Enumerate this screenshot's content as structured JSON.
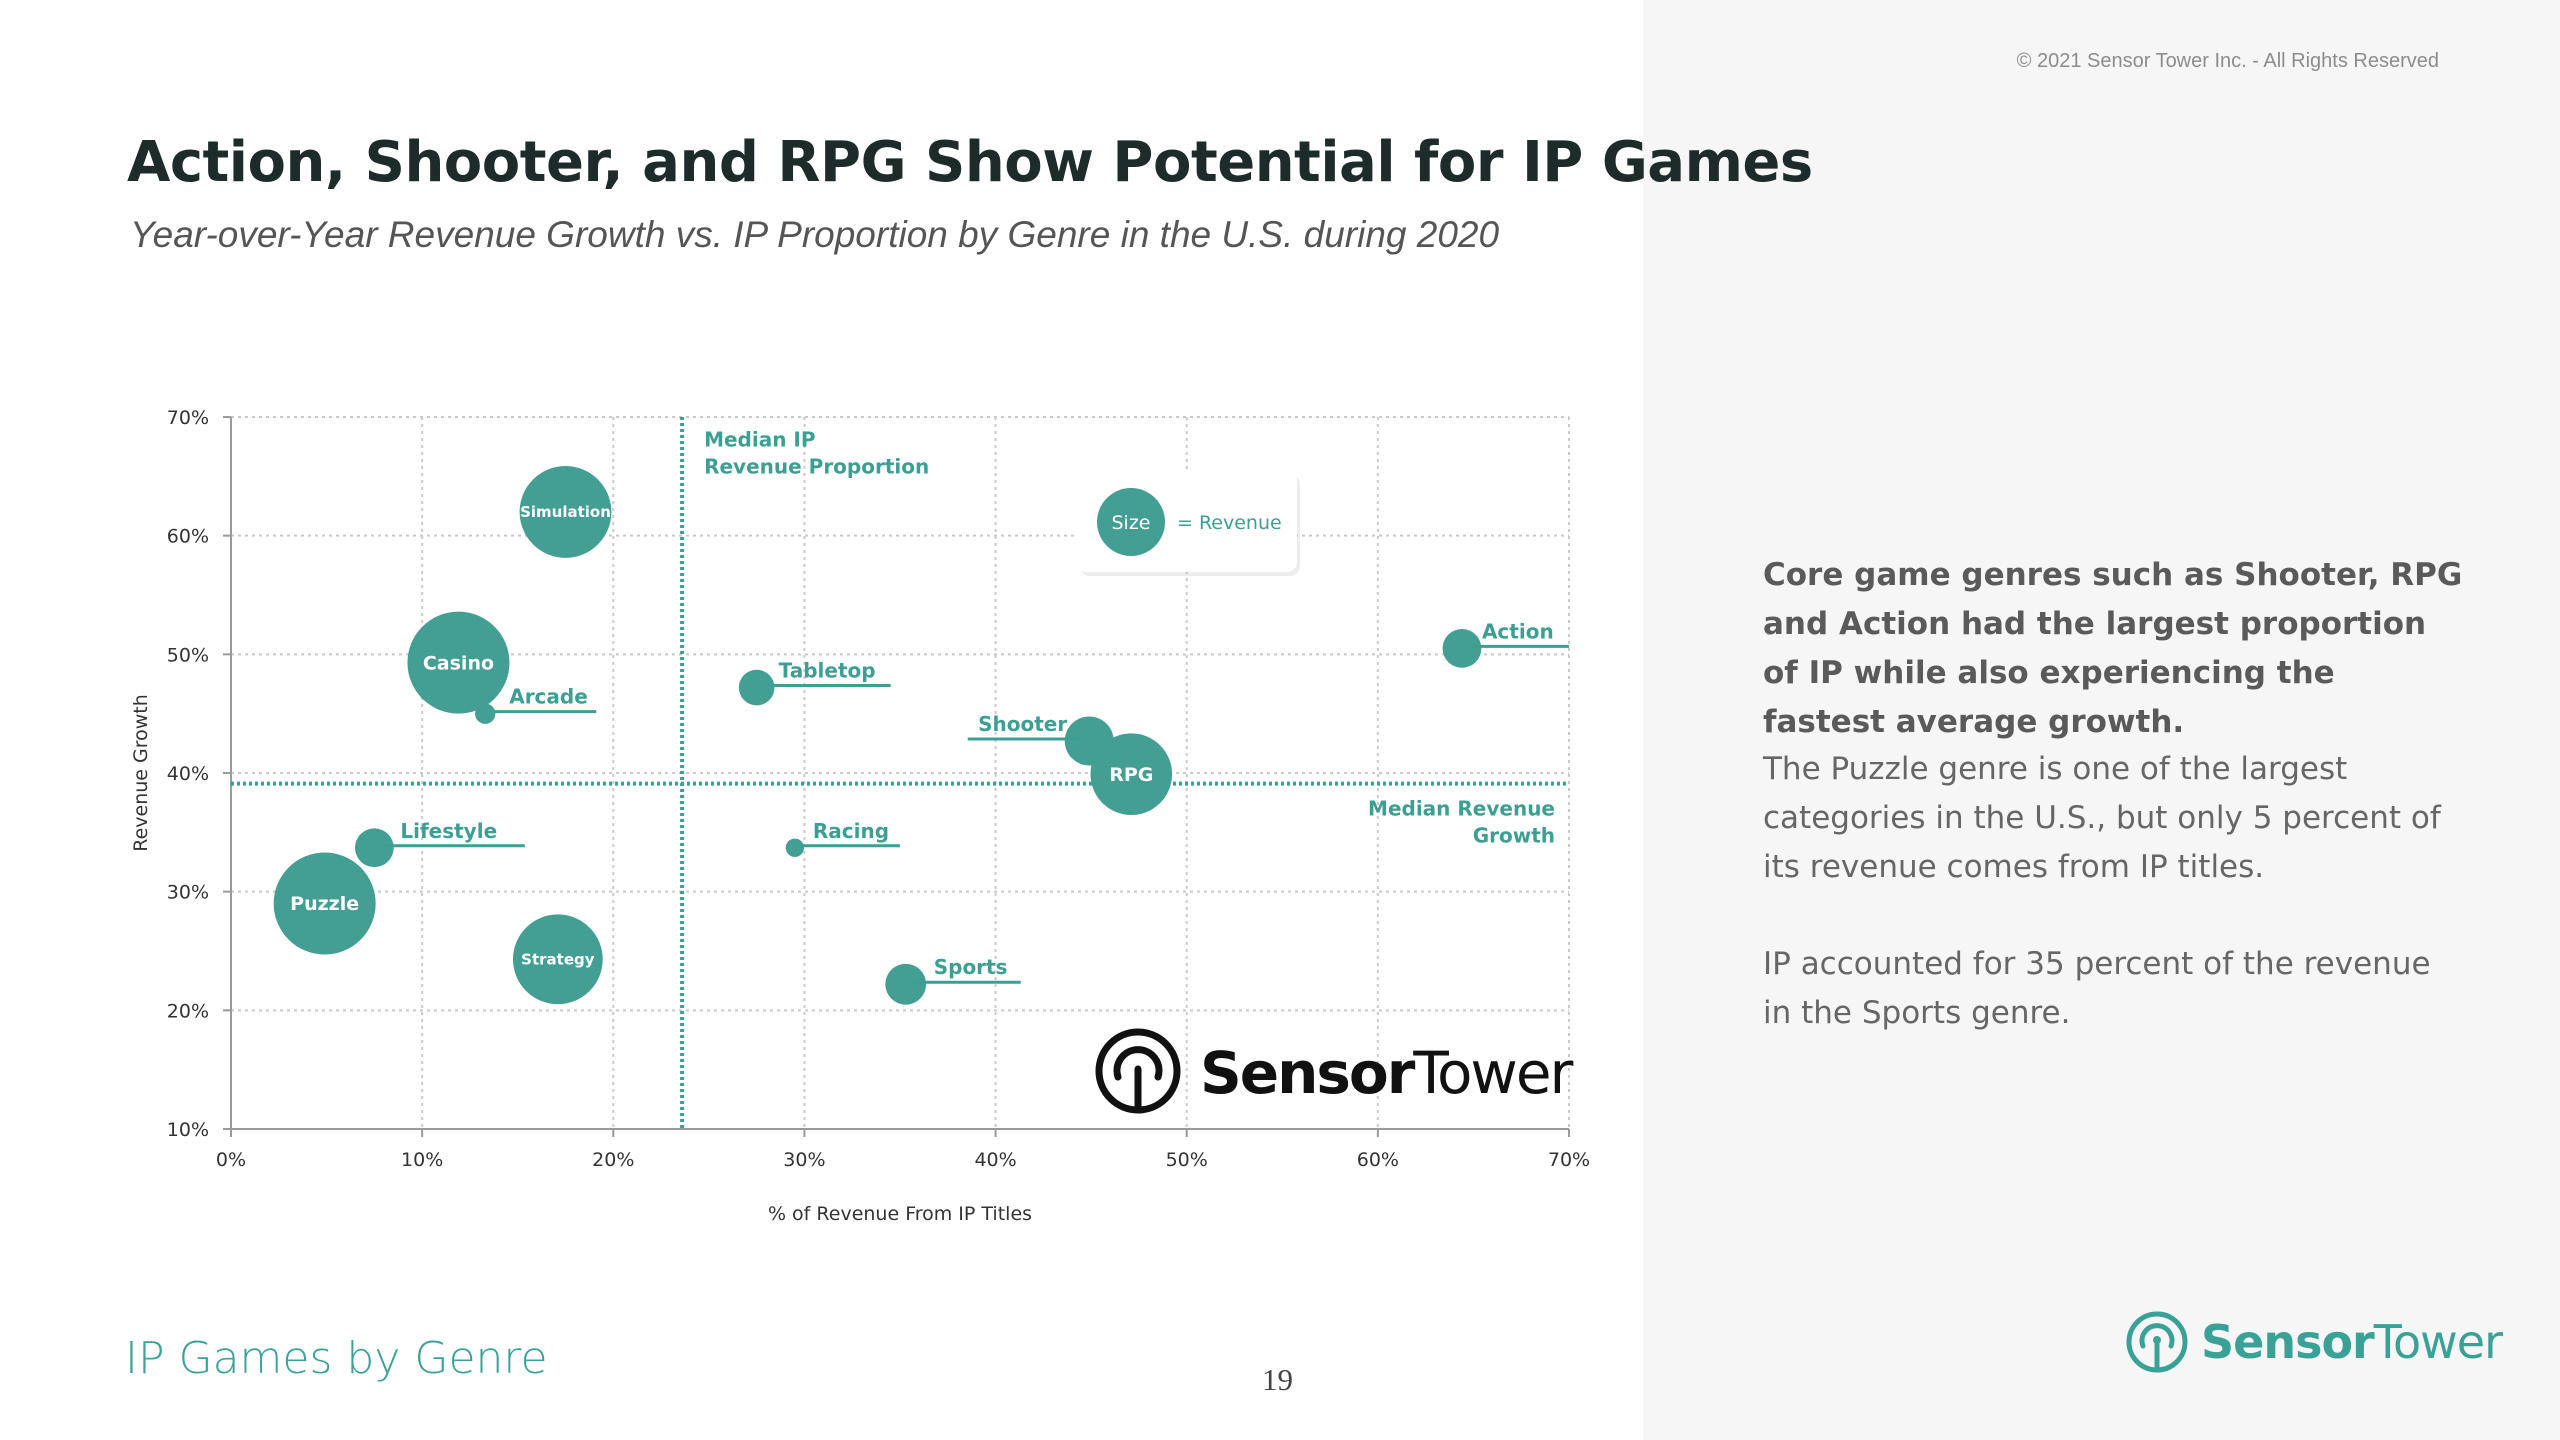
{
  "header": {
    "copyright": "© 2021 Sensor Tower Inc. - All Rights Reserved",
    "title": "Action, Shooter, and RPG Show Potential for IP Games",
    "subtitle": "Year-over-Year Revenue Growth vs. IP Proportion by Genre in the U.S. during 2020"
  },
  "callouts": {
    "highlight": "Core game genres such as Shooter, RPG and Action had the largest proportion of IP while also experiencing the fastest average growth.",
    "puzzle": "The Puzzle genre is one of the largest categories in the U.S., but only 5 percent of its revenue comes from IP titles.",
    "sports": "IP accounted for 35 percent of the revenue in the Sports genre."
  },
  "footer": {
    "section_title": "IP Games by Genre",
    "page_number": "19",
    "brand_bold": "Sensor",
    "brand_light": "Tower"
  },
  "colors": {
    "accent": "#3d9e93",
    "bubble": "#439e93",
    "text_dark": "#1e2b2b"
  },
  "chart_data": {
    "type": "bubble",
    "title": "Year-over-Year Revenue Growth vs. IP Proportion by Genre in the U.S. during 2020",
    "xlabel": "% of Revenue From IP Titles",
    "ylabel": "Revenue Growth",
    "xlim": [
      0,
      70
    ],
    "ylim": [
      10,
      70
    ],
    "x_ticks": [
      0,
      10,
      20,
      30,
      40,
      50,
      60,
      70
    ],
    "y_ticks": [
      10,
      20,
      30,
      40,
      50,
      60,
      70
    ],
    "x_tick_labels": [
      "0%",
      "10%",
      "20%",
      "30%",
      "40%",
      "50%",
      "60%",
      "70%"
    ],
    "y_tick_labels": [
      "10%",
      "20%",
      "30%",
      "40%",
      "50%",
      "60%",
      "70%"
    ],
    "grid": true,
    "median_ip_proportion": 23.6,
    "median_revenue_growth": 39.1,
    "median_ip_label": [
      "Median IP",
      "Revenue Proportion"
    ],
    "median_growth_label": [
      "Median Revenue",
      "Growth"
    ],
    "legend": {
      "bubble_label": "Size",
      "text": "= Revenue",
      "placement": "top-right"
    },
    "series": [
      {
        "name": "Simulation",
        "x": 17.5,
        "y": 62.0,
        "size": 0.9,
        "label_inside": true
      },
      {
        "name": "Casino",
        "x": 11.9,
        "y": 49.3,
        "size": 1.0,
        "label_inside": true
      },
      {
        "name": "Arcade",
        "x": 13.3,
        "y": 45.0,
        "size": 0.2,
        "label_inside": false
      },
      {
        "name": "Tabletop",
        "x": 27.5,
        "y": 47.2,
        "size": 0.35,
        "label_inside": false
      },
      {
        "name": "Shooter",
        "x": 44.9,
        "y": 42.7,
        "size": 0.48,
        "label_inside": false
      },
      {
        "name": "RPG",
        "x": 47.1,
        "y": 39.9,
        "size": 0.8,
        "label_inside": true
      },
      {
        "name": "Action",
        "x": 64.4,
        "y": 50.5,
        "size": 0.38,
        "label_inside": false
      },
      {
        "name": "Lifestyle",
        "x": 7.5,
        "y": 33.7,
        "size": 0.38,
        "label_inside": false
      },
      {
        "name": "Puzzle",
        "x": 4.9,
        "y": 29.0,
        "size": 1.0,
        "label_inside": true
      },
      {
        "name": "Racing",
        "x": 29.5,
        "y": 33.7,
        "size": 0.18,
        "label_inside": false
      },
      {
        "name": "Strategy",
        "x": 17.1,
        "y": 24.3,
        "size": 0.88,
        "label_inside": true
      },
      {
        "name": "Sports",
        "x": 35.3,
        "y": 22.2,
        "size": 0.4,
        "label_inside": false
      }
    ]
  }
}
